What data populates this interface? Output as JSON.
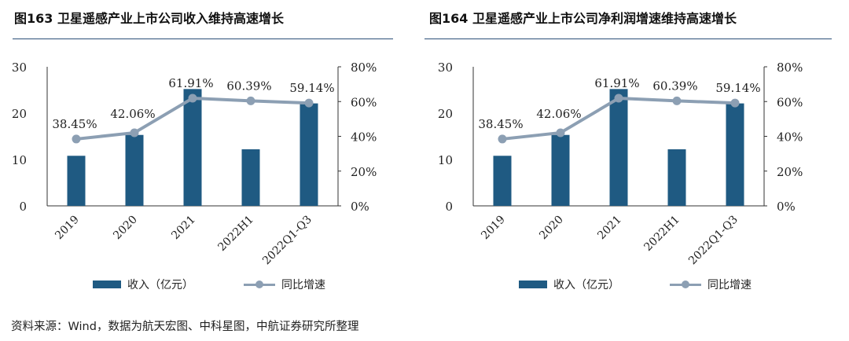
{
  "colors": {
    "bar": "#1f5a82",
    "line": "#8c9fb3",
    "rule": "#2b4f77"
  },
  "source": "资料来源：Wind，数据为航天宏图、中科星图，中航证券研究所整理",
  "chart_data": [
    {
      "type": "bar",
      "title": "图163  卫星遥感产业上市公司收入维持高速增长",
      "categories": [
        "2019",
        "2020",
        "2021",
        "2022H1",
        "2022Q1-Q3"
      ],
      "series": [
        {
          "name": "收入（亿元）",
          "type": "bar",
          "axis": "left",
          "values": [
            10.8,
            15.3,
            25.2,
            12.2,
            22.1
          ]
        },
        {
          "name": "同比增速",
          "type": "line",
          "axis": "right",
          "values": [
            0.3845,
            0.4206,
            0.6191,
            0.6039,
            0.5914
          ],
          "labels": [
            "38.45%",
            "42.06%",
            "61.91%",
            "60.39%",
            "59.14%"
          ]
        }
      ],
      "y_left": {
        "lim": [
          0,
          30
        ],
        "ticks": [
          "0",
          "10",
          "20",
          "30"
        ]
      },
      "y_right": {
        "lim": [
          0,
          0.8
        ],
        "ticks": [
          "0%",
          "20%",
          "40%",
          "60%",
          "80%"
        ]
      },
      "legend": "bottom"
    },
    {
      "type": "bar",
      "title": "图164  卫星遥感产业上市公司净利润增速维持高速增长",
      "categories": [
        "2019",
        "2020",
        "2021",
        "2022H1",
        "2022Q1-Q3"
      ],
      "series": [
        {
          "name": "收入（亿元）",
          "type": "bar",
          "axis": "left",
          "values": [
            10.8,
            15.3,
            25.2,
            12.2,
            22.1
          ]
        },
        {
          "name": "同比增速",
          "type": "line",
          "axis": "right",
          "values": [
            0.3845,
            0.4206,
            0.6191,
            0.6039,
            0.5914
          ],
          "labels": [
            "38.45%",
            "42.06%",
            "61.91%",
            "60.39%",
            "59.14%"
          ]
        }
      ],
      "y_left": {
        "lim": [
          0,
          30
        ],
        "ticks": [
          "0",
          "10",
          "20",
          "30"
        ]
      },
      "y_right": {
        "lim": [
          0,
          0.8
        ],
        "ticks": [
          "0%",
          "20%",
          "40%",
          "60%",
          "80%"
        ]
      },
      "legend": "bottom"
    }
  ]
}
